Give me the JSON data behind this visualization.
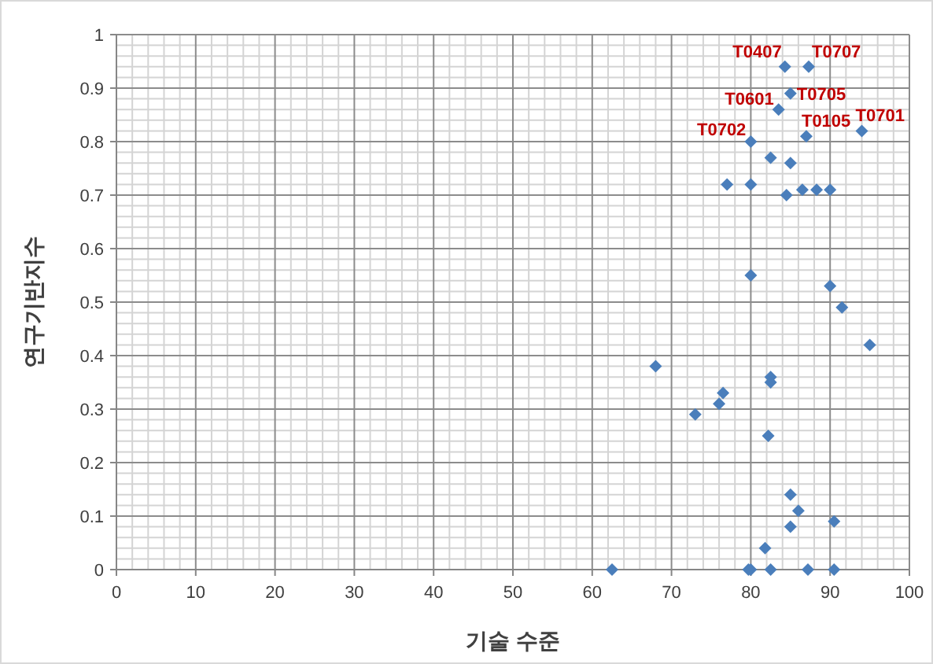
{
  "chart_data": {
    "type": "scatter",
    "xlabel": "기술 수준",
    "ylabel": "연구기반지수",
    "xlim": [
      0,
      100
    ],
    "xticks": [
      0,
      10,
      20,
      30,
      40,
      50,
      60,
      70,
      80,
      90,
      100
    ],
    "ylim": [
      0,
      1
    ],
    "yticks": [
      0,
      0.1,
      0.2,
      0.3,
      0.4,
      0.5,
      0.6,
      0.7,
      0.8,
      0.9,
      1
    ],
    "grid": true,
    "marker": "diamond",
    "series": [
      {
        "color": "#4a7ebb",
        "x": [
          84.3,
          87.3,
          85,
          83.5,
          87,
          80,
          94,
          82.5,
          85,
          77,
          80,
          84.5,
          86.5,
          88.3,
          90,
          80,
          90,
          91.5,
          95,
          68,
          82.5,
          82.5,
          76.5,
          76,
          73,
          82.2,
          85,
          86,
          90.5,
          85,
          81.8,
          62.5,
          79.7,
          80,
          82.5,
          87.2,
          90.5
        ],
        "values": [
          0.94,
          0.94,
          0.89,
          0.86,
          0.81,
          0.8,
          0.82,
          0.77,
          0.76,
          0.72,
          0.72,
          0.7,
          0.71,
          0.71,
          0.71,
          0.55,
          0.53,
          0.49,
          0.42,
          0.38,
          0.36,
          0.35,
          0.33,
          0.31,
          0.29,
          0.25,
          0.14,
          0.11,
          0.09,
          0.08,
          0.04,
          0,
          0,
          0,
          0,
          0,
          0
        ]
      }
    ],
    "annotations": [
      {
        "text": "T0407",
        "x": 84.3,
        "y": 0.94
      },
      {
        "text": "T0707",
        "x": 87.3,
        "y": 0.94
      },
      {
        "text": "T0601",
        "x": 83.5,
        "y": 0.86
      },
      {
        "text": "T0705",
        "x": 85,
        "y": 0.89
      },
      {
        "text": "T0702",
        "x": 80,
        "y": 0.8
      },
      {
        "text": "T0105",
        "x": 87,
        "y": 0.81
      },
      {
        "text": "T0701",
        "x": 94,
        "y": 0.82
      }
    ]
  }
}
